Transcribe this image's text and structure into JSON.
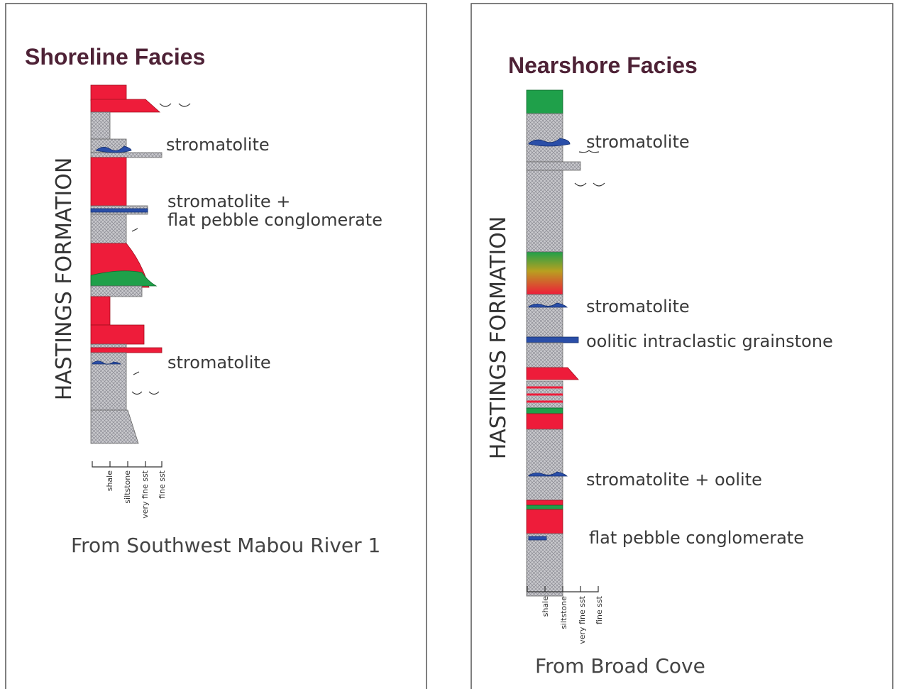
{
  "panels": [
    {
      "title": "Shoreline Facies",
      "formation": "HASTINGS FORMATION",
      "annotations": [
        "stromatolite",
        "stromatolite +",
        "flat pebble conglomerate",
        "stromatolite"
      ],
      "grain_sizes": [
        "shale",
        "siltstone",
        "very fine sst",
        "fine sst"
      ],
      "caption": "From Southwest Mabou River 1"
    },
    {
      "title": "Nearshore Facies",
      "formation": "HASTINGS FORMATION",
      "annotations": [
        "stromatolite",
        "stromatolite",
        "oolitic intraclastic grainstone",
        "stromatolite + oolite",
        "flat pebble conglomerate"
      ],
      "grain_sizes": [
        "shale",
        "siltstone",
        "very fine sst",
        "fine sst"
      ],
      "caption": "From Broad Cove"
    }
  ]
}
